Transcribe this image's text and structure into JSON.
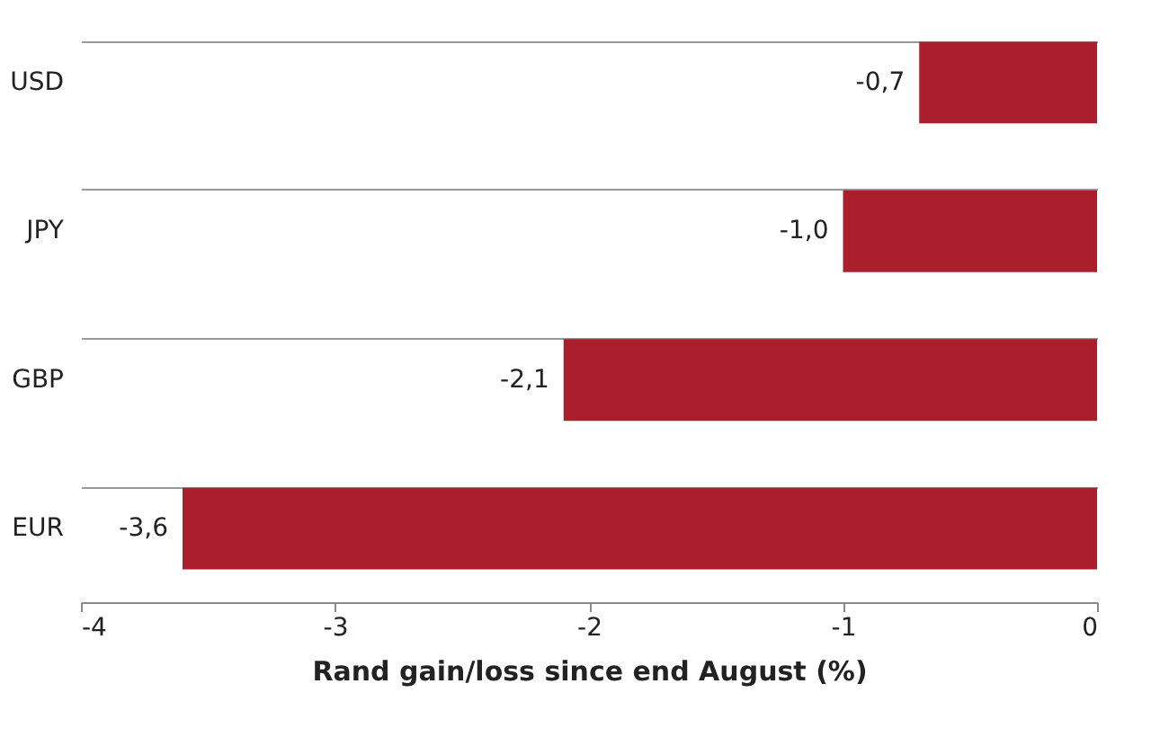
{
  "chart_data": {
    "type": "bar",
    "orientation": "horizontal",
    "xlabel": "Rand gain/loss since end August (%)",
    "categories": [
      "USD",
      "JPY",
      "GBP",
      "EUR"
    ],
    "values": [
      -0.7,
      -1.0,
      -2.1,
      -3.6
    ],
    "value_labels": [
      "-0,7",
      "-1,0",
      "-2,1",
      "-3,6"
    ],
    "color": "#aa1f2b",
    "xlim": [
      -4,
      0
    ],
    "xticks": [
      -4,
      -3,
      -2,
      -1,
      0
    ],
    "grid": "y"
  }
}
